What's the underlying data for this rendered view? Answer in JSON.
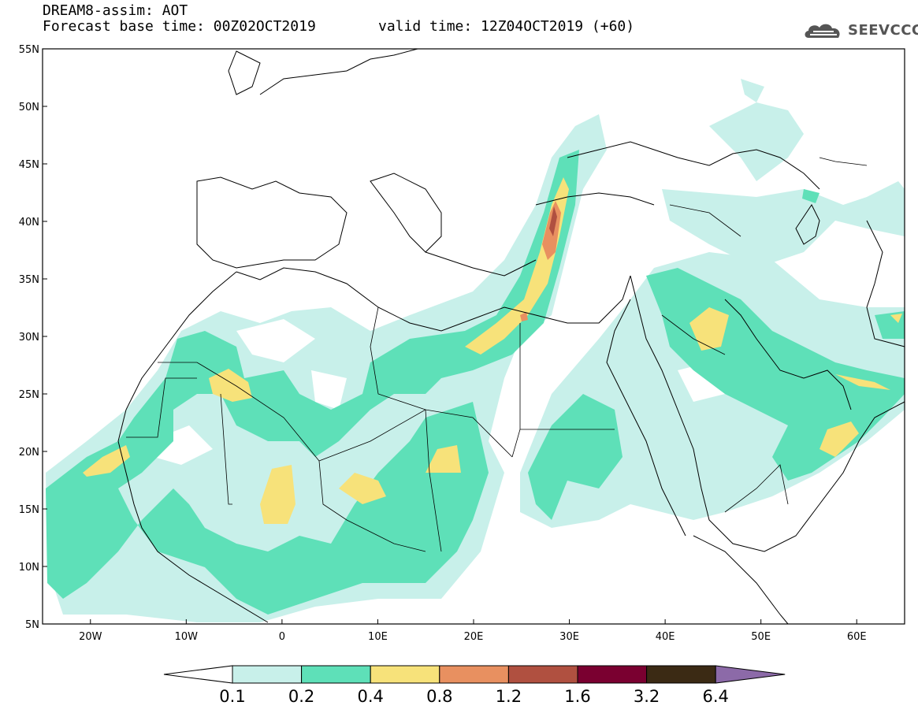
{
  "header": {
    "title": "DREAM8-assim: AOT",
    "base_time": "Forecast base time: 00Z02OCT2019",
    "valid_time": "valid time: 12Z04OCT2019 (+60)"
  },
  "logo": {
    "text": "SEEVCCC",
    "icon": "cloud-icon"
  },
  "map": {
    "lat_labels": [
      "55N",
      "50N",
      "45N",
      "40N",
      "35N",
      "30N",
      "25N",
      "20N",
      "15N",
      "10N",
      "5N"
    ],
    "lon_labels": [
      "20W",
      "10W",
      "0",
      "10E",
      "20E",
      "30E",
      "40E",
      "50E",
      "60E"
    ],
    "lon_range": [
      -25,
      65
    ],
    "lat_range": [
      5,
      55
    ]
  },
  "colorbar": {
    "labels": [
      "0.1",
      "0.2",
      "0.4",
      "0.8",
      "1.2",
      "1.6",
      "3.2",
      "6.4"
    ],
    "colors": [
      "#ffffff",
      "#c8f0ea",
      "#5ee0b8",
      "#f7e27a",
      "#e89060",
      "#b05040",
      "#7a0030",
      "#3b2a14",
      "#8c6aa8"
    ]
  }
}
